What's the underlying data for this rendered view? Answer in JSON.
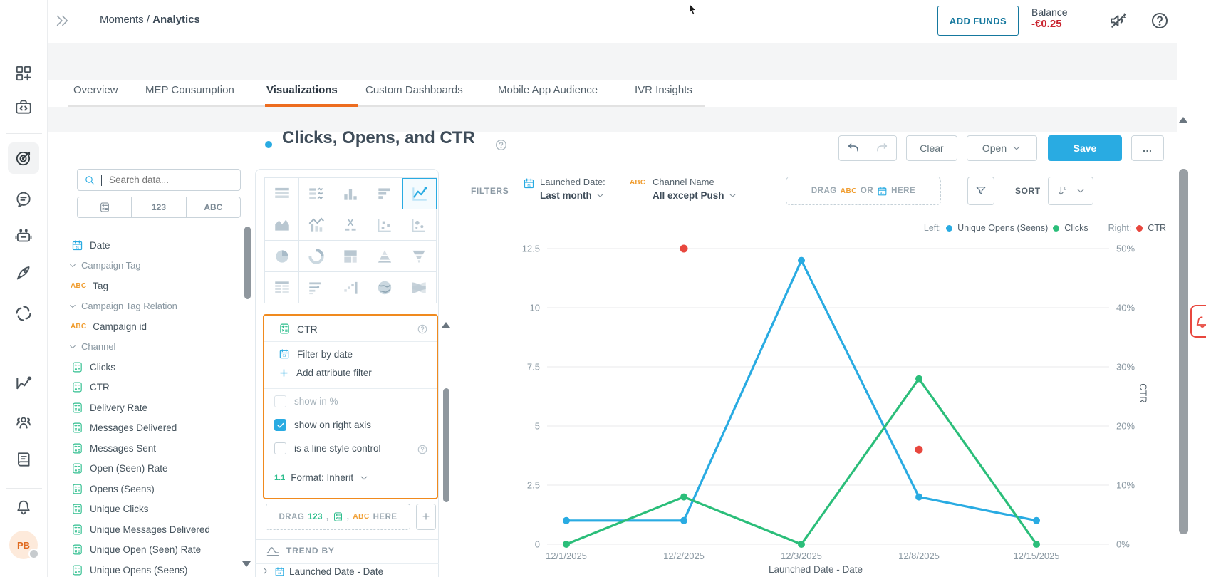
{
  "topbar": {
    "breadcrumb_root": "Moments /",
    "breadcrumb_current": "Analytics",
    "add_funds_label": "ADD FUNDS",
    "balance_label": "Balance",
    "balance_value": "-€0.25"
  },
  "sidebar": {
    "items": [
      {
        "name": "apps-icon"
      },
      {
        "name": "dev-icon"
      },
      {
        "name": "moments-target-icon",
        "active": true
      },
      {
        "name": "answers-chat-icon"
      },
      {
        "name": "chatbot-icon"
      },
      {
        "name": "campaigns-rocket-icon"
      },
      {
        "name": "exchange-swirl-icon"
      },
      {
        "name": "analytics-icon"
      },
      {
        "name": "audience-people-icon"
      },
      {
        "name": "docs-book-icon"
      },
      {
        "name": "notifications-bell-icon"
      }
    ],
    "avatar_initials": "PB"
  },
  "tabs": {
    "items": [
      {
        "label": "Overview",
        "active": false
      },
      {
        "label": "MEP Consumption",
        "active": false
      },
      {
        "label": "Visualizations",
        "active": true
      },
      {
        "label": "Custom Dashboards",
        "active": false
      },
      {
        "label": "Mobile App Audience",
        "active": false
      },
      {
        "label": "IVR Insights",
        "active": false
      }
    ]
  },
  "viz": {
    "title": "Clicks, Opens, and CTR"
  },
  "toolbar": {
    "clear_label": "Clear",
    "open_label": "Open",
    "save_label": "Save",
    "more_label": "…"
  },
  "search": {
    "placeholder": "Search data..."
  },
  "field_type_filters": {
    "numeric": "123",
    "text": "ABC"
  },
  "fields": {
    "items": [
      {
        "type": "date",
        "label": "Date"
      },
      {
        "type": "group",
        "label": "Campaign Tag"
      },
      {
        "type": "abc",
        "label": "Tag"
      },
      {
        "type": "group",
        "label": "Campaign Tag Relation"
      },
      {
        "type": "abc",
        "label": "Campaign id"
      },
      {
        "type": "group",
        "label": "Channel"
      },
      {
        "type": "calc",
        "label": "Clicks"
      },
      {
        "type": "calc",
        "label": "CTR"
      },
      {
        "type": "calc",
        "label": "Delivery Rate"
      },
      {
        "type": "calc",
        "label": "Messages Delivered"
      },
      {
        "type": "calc",
        "label": "Messages Sent"
      },
      {
        "type": "calc",
        "label": "Open (Seen) Rate"
      },
      {
        "type": "calc",
        "label": "Opens (Seens)"
      },
      {
        "type": "calc",
        "label": "Unique Clicks"
      },
      {
        "type": "calc",
        "label": "Unique Messages Delivered"
      },
      {
        "type": "calc",
        "label": "Unique Open (Seen) Rate"
      },
      {
        "type": "calc",
        "label": "Unique Opens (Seens)"
      }
    ]
  },
  "chart_types": {
    "selected": "line-chart",
    "items": [
      "table",
      "table-chart",
      "column-chart",
      "bar-chart",
      "line-chart",
      "area-chart",
      "combo-chart",
      "headline",
      "scatter-plot",
      "bubble-chart",
      "pie-chart",
      "donut-chart",
      "treemap",
      "pyramid-chart",
      "funnel-chart",
      "pivot-table",
      "bullet-chart",
      "waterfall-chart",
      "geo-chart",
      "sankey-chart"
    ]
  },
  "metric_panel": {
    "title": "CTR",
    "filter_by_date": "Filter by date",
    "add_attribute_filter": "Add attribute filter",
    "cb_show_in_pct": "show in %",
    "cb_show_right_axis": "show on right axis",
    "cb_line_style": "is a line style control",
    "format_icon": "1.1",
    "format_label": "Format: Inherit"
  },
  "drop_zone": {
    "drag": "DRAG",
    "num": "123",
    "sep1": ",",
    "sep2": ",",
    "abc": "ABC",
    "here": "HERE",
    "plus": "+"
  },
  "trend_by": {
    "label": "TREND BY",
    "item_label": "Launched Date - Date"
  },
  "filters_bar": {
    "label": "FILTERS",
    "date_name": "Launched Date:",
    "date_value": "Last month",
    "attr_abc": "ABC",
    "attr_name": "Channel Name",
    "attr_value": "All except Push",
    "drop_drag": "DRAG",
    "drop_abc": "ABC",
    "drop_or": "OR",
    "drop_here": "HERE",
    "sort_label": "SORT"
  },
  "legend": {
    "left_label": "Left:",
    "s1": "Unique Opens (Seens)",
    "s1_color": "#29abe2",
    "s2": "Clicks",
    "s2_color": "#2bbe7a",
    "right_label": "Right:",
    "s3": "CTR",
    "s3_color": "#e8473e"
  },
  "chart_data": {
    "type": "line",
    "title": "Clicks, Opens, and CTR",
    "x_categories": [
      "12/1/2025",
      "12/2/2025",
      "12/3/2025",
      "12/8/2025",
      "12/15/2025"
    ],
    "series": [
      {
        "name": "Unique Opens (Seens)",
        "axis": "left",
        "color": "#29abe2",
        "values": [
          1,
          1,
          12,
          2,
          1
        ]
      },
      {
        "name": "Clicks",
        "axis": "left",
        "color": "#2bbe7a",
        "values": [
          0,
          2,
          0,
          7,
          0
        ]
      },
      {
        "name": "CTR",
        "axis": "right",
        "style": "points",
        "color": "#e8473e",
        "values_pct": [
          null,
          50,
          null,
          16,
          null
        ]
      }
    ],
    "left_axis": {
      "ticks": [
        0,
        2.5,
        5,
        7.5,
        10,
        12.5
      ],
      "range": [
        0,
        12.5
      ]
    },
    "right_axis": {
      "label": "CTR",
      "ticks": [
        "0%",
        "10%",
        "20%",
        "30%",
        "40%",
        "50%"
      ],
      "range": [
        0,
        50
      ]
    },
    "xlabel": "Launched Date - Date",
    "grid": "horizontal"
  },
  "colors": {
    "accent_blue": "#29abe2",
    "green": "#2bbe7a",
    "red_dot": "#e8473e",
    "brand_orange": "#f2672a",
    "tab_underline": "#ed6c1f",
    "metric_panel_border": "#f08a1e",
    "abc_orange": "#f09d30",
    "calc_teal": "#2dbe8d",
    "balance_red": "#c9242f"
  }
}
